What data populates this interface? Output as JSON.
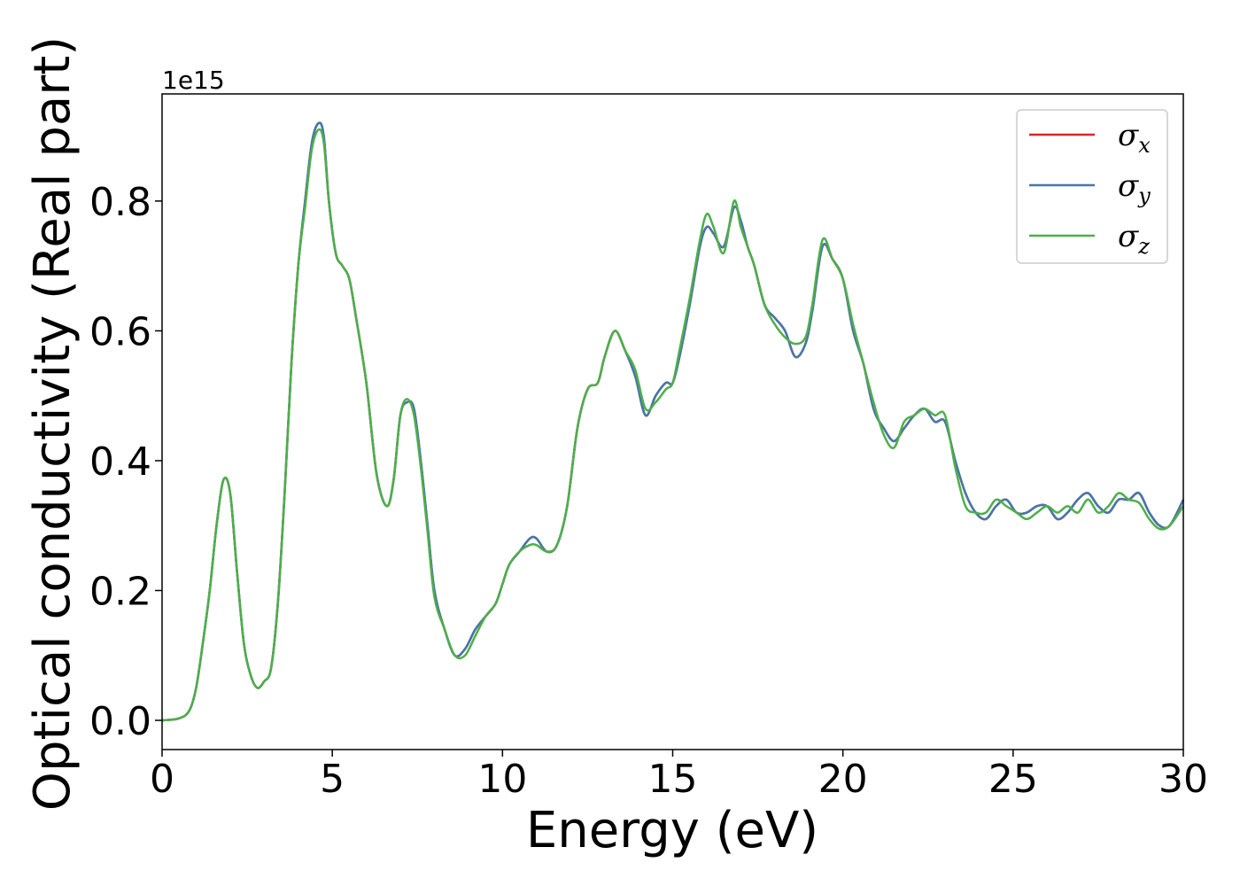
{
  "chart_data": {
    "type": "line",
    "xlabel": "Energy (eV)",
    "ylabel": "Optical conductivity (Real part)",
    "y_offset_label": "1e15",
    "xlim": [
      0,
      30
    ],
    "ylim": [
      -0.045,
      0.965
    ],
    "x_ticks": [
      0,
      5,
      10,
      15,
      20,
      25,
      30
    ],
    "x_tick_labels": [
      "0",
      "5",
      "10",
      "15",
      "20",
      "25",
      "30"
    ],
    "y_ticks": [
      0.0,
      0.2,
      0.4,
      0.6,
      0.8
    ],
    "y_tick_labels": [
      "0.0",
      "0.2",
      "0.4",
      "0.6",
      "0.8"
    ],
    "grid": false,
    "legend_position": "top-right",
    "series": [
      {
        "name": "σx",
        "legend_base": "σ",
        "legend_sub": "x",
        "color": "#d62728",
        "x": [
          0,
          0.5,
          0.8,
          1.0,
          1.2,
          1.4,
          1.6,
          1.8,
          2.0,
          2.2,
          2.4,
          2.6,
          2.8,
          3.0,
          3.2,
          3.4,
          3.6,
          3.8,
          4.0,
          4.2,
          4.4,
          4.6,
          4.75,
          4.9,
          5.1,
          5.3,
          5.5,
          5.7,
          6.0,
          6.3,
          6.6,
          6.8,
          7.0,
          7.2,
          7.4,
          7.6,
          7.8,
          8.0,
          8.3,
          8.6,
          8.9,
          9.2,
          9.5,
          9.8,
          10.0,
          10.2,
          10.5,
          10.8,
          11.0,
          11.3,
          11.6,
          11.9,
          12.2,
          12.5,
          12.8,
          13.0,
          13.3,
          13.6,
          13.9,
          14.2,
          14.5,
          14.8,
          15.0,
          15.2,
          15.5,
          15.8,
          16.0,
          16.2,
          16.5,
          16.8,
          17.0,
          17.2,
          17.4,
          17.7,
          18.0,
          18.3,
          18.6,
          18.9,
          19.1,
          19.4,
          19.7,
          20.0,
          20.3,
          20.6,
          20.9,
          21.2,
          21.5,
          21.8,
          22.1,
          22.4,
          22.7,
          23.0,
          23.3,
          23.6,
          23.9,
          24.2,
          24.5,
          24.8,
          25.1,
          25.4,
          25.7,
          26.0,
          26.3,
          26.6,
          26.9,
          27.2,
          27.5,
          27.8,
          28.1,
          28.4,
          28.7,
          29.0,
          29.3,
          29.6,
          30.0
        ],
        "y": [
          0,
          0.003,
          0.015,
          0.05,
          0.12,
          0.2,
          0.3,
          0.37,
          0.35,
          0.23,
          0.12,
          0.07,
          0.05,
          0.06,
          0.08,
          0.18,
          0.35,
          0.55,
          0.7,
          0.8,
          0.89,
          0.92,
          0.9,
          0.8,
          0.72,
          0.7,
          0.68,
          0.62,
          0.52,
          0.38,
          0.33,
          0.37,
          0.47,
          0.49,
          0.48,
          0.4,
          0.3,
          0.2,
          0.14,
          0.1,
          0.11,
          0.14,
          0.16,
          0.18,
          0.21,
          0.24,
          0.26,
          0.28,
          0.28,
          0.26,
          0.27,
          0.33,
          0.45,
          0.51,
          0.52,
          0.56,
          0.6,
          0.57,
          0.53,
          0.47,
          0.5,
          0.52,
          0.52,
          0.56,
          0.64,
          0.73,
          0.76,
          0.75,
          0.73,
          0.79,
          0.77,
          0.73,
          0.7,
          0.64,
          0.62,
          0.6,
          0.56,
          0.58,
          0.63,
          0.73,
          0.71,
          0.68,
          0.6,
          0.55,
          0.48,
          0.45,
          0.43,
          0.45,
          0.47,
          0.48,
          0.46,
          0.46,
          0.4,
          0.35,
          0.32,
          0.31,
          0.33,
          0.34,
          0.32,
          0.32,
          0.33,
          0.33,
          0.31,
          0.32,
          0.34,
          0.35,
          0.33,
          0.32,
          0.34,
          0.34,
          0.35,
          0.32,
          0.3,
          0.3,
          0.34
        ]
      },
      {
        "name": "σy",
        "legend_base": "σ",
        "legend_sub": "y",
        "color": "#4477aa",
        "x": [
          0,
          0.5,
          0.8,
          1.0,
          1.2,
          1.4,
          1.6,
          1.8,
          2.0,
          2.2,
          2.4,
          2.6,
          2.8,
          3.0,
          3.2,
          3.4,
          3.6,
          3.8,
          4.0,
          4.2,
          4.4,
          4.6,
          4.75,
          4.9,
          5.1,
          5.3,
          5.5,
          5.7,
          6.0,
          6.3,
          6.6,
          6.8,
          7.0,
          7.2,
          7.4,
          7.6,
          7.8,
          8.0,
          8.3,
          8.6,
          8.9,
          9.2,
          9.5,
          9.8,
          10.0,
          10.2,
          10.5,
          10.8,
          11.0,
          11.3,
          11.6,
          11.9,
          12.2,
          12.5,
          12.8,
          13.0,
          13.3,
          13.6,
          13.9,
          14.2,
          14.5,
          14.8,
          15.0,
          15.2,
          15.5,
          15.8,
          16.0,
          16.2,
          16.5,
          16.8,
          17.0,
          17.2,
          17.4,
          17.7,
          18.0,
          18.3,
          18.6,
          18.9,
          19.1,
          19.4,
          19.7,
          20.0,
          20.3,
          20.6,
          20.9,
          21.2,
          21.5,
          21.8,
          22.1,
          22.4,
          22.7,
          23.0,
          23.3,
          23.6,
          23.9,
          24.2,
          24.5,
          24.8,
          25.1,
          25.4,
          25.7,
          26.0,
          26.3,
          26.6,
          26.9,
          27.2,
          27.5,
          27.8,
          28.1,
          28.4,
          28.7,
          29.0,
          29.3,
          29.6,
          30.0
        ],
        "y": [
          0,
          0.003,
          0.015,
          0.05,
          0.12,
          0.2,
          0.3,
          0.37,
          0.35,
          0.23,
          0.12,
          0.07,
          0.05,
          0.06,
          0.08,
          0.18,
          0.35,
          0.55,
          0.7,
          0.8,
          0.89,
          0.92,
          0.9,
          0.8,
          0.72,
          0.7,
          0.68,
          0.62,
          0.52,
          0.38,
          0.33,
          0.37,
          0.47,
          0.49,
          0.48,
          0.4,
          0.3,
          0.2,
          0.14,
          0.1,
          0.11,
          0.14,
          0.16,
          0.18,
          0.21,
          0.24,
          0.26,
          0.28,
          0.28,
          0.26,
          0.27,
          0.33,
          0.45,
          0.51,
          0.52,
          0.56,
          0.6,
          0.57,
          0.53,
          0.47,
          0.5,
          0.52,
          0.52,
          0.56,
          0.64,
          0.73,
          0.76,
          0.75,
          0.73,
          0.79,
          0.77,
          0.73,
          0.7,
          0.64,
          0.62,
          0.6,
          0.56,
          0.58,
          0.63,
          0.73,
          0.71,
          0.68,
          0.6,
          0.55,
          0.48,
          0.45,
          0.43,
          0.45,
          0.47,
          0.48,
          0.46,
          0.46,
          0.4,
          0.35,
          0.32,
          0.31,
          0.33,
          0.34,
          0.32,
          0.32,
          0.33,
          0.33,
          0.31,
          0.32,
          0.34,
          0.35,
          0.33,
          0.32,
          0.34,
          0.34,
          0.35,
          0.32,
          0.3,
          0.3,
          0.34
        ]
      },
      {
        "name": "σz",
        "legend_base": "σ",
        "legend_sub": "z",
        "color": "#4daf4a",
        "x": [
          0,
          0.5,
          0.8,
          1.0,
          1.2,
          1.4,
          1.6,
          1.8,
          2.0,
          2.2,
          2.4,
          2.6,
          2.8,
          3.0,
          3.2,
          3.4,
          3.6,
          3.8,
          4.0,
          4.2,
          4.4,
          4.6,
          4.75,
          4.9,
          5.1,
          5.3,
          5.5,
          5.7,
          6.0,
          6.3,
          6.6,
          6.8,
          7.0,
          7.2,
          7.4,
          7.6,
          7.8,
          8.0,
          8.3,
          8.6,
          8.9,
          9.2,
          9.5,
          9.8,
          10.0,
          10.2,
          10.5,
          10.8,
          11.0,
          11.3,
          11.6,
          11.9,
          12.2,
          12.5,
          12.8,
          13.0,
          13.3,
          13.6,
          13.9,
          14.2,
          14.5,
          14.8,
          15.0,
          15.2,
          15.5,
          15.8,
          16.0,
          16.2,
          16.5,
          16.8,
          17.0,
          17.2,
          17.4,
          17.7,
          18.0,
          18.3,
          18.6,
          18.9,
          19.1,
          19.4,
          19.7,
          20.0,
          20.3,
          20.6,
          20.9,
          21.2,
          21.5,
          21.8,
          22.1,
          22.4,
          22.7,
          23.0,
          23.3,
          23.6,
          23.9,
          24.2,
          24.5,
          24.8,
          25.1,
          25.4,
          25.7,
          26.0,
          26.3,
          26.6,
          26.9,
          27.2,
          27.5,
          27.8,
          28.1,
          28.4,
          28.7,
          29.0,
          29.3,
          29.6,
          30.0
        ],
        "y": [
          0,
          0.003,
          0.015,
          0.05,
          0.12,
          0.2,
          0.3,
          0.37,
          0.35,
          0.23,
          0.12,
          0.07,
          0.05,
          0.06,
          0.08,
          0.18,
          0.35,
          0.55,
          0.7,
          0.79,
          0.88,
          0.91,
          0.89,
          0.8,
          0.72,
          0.7,
          0.68,
          0.62,
          0.52,
          0.38,
          0.33,
          0.37,
          0.47,
          0.495,
          0.47,
          0.39,
          0.29,
          0.19,
          0.14,
          0.1,
          0.1,
          0.13,
          0.16,
          0.18,
          0.21,
          0.24,
          0.26,
          0.27,
          0.27,
          0.26,
          0.27,
          0.33,
          0.45,
          0.51,
          0.52,
          0.56,
          0.6,
          0.57,
          0.54,
          0.48,
          0.49,
          0.51,
          0.52,
          0.57,
          0.65,
          0.74,
          0.78,
          0.76,
          0.72,
          0.8,
          0.76,
          0.73,
          0.7,
          0.64,
          0.61,
          0.59,
          0.58,
          0.59,
          0.64,
          0.74,
          0.71,
          0.68,
          0.61,
          0.55,
          0.49,
          0.44,
          0.42,
          0.46,
          0.47,
          0.48,
          0.47,
          0.47,
          0.39,
          0.33,
          0.32,
          0.32,
          0.34,
          0.33,
          0.32,
          0.31,
          0.32,
          0.33,
          0.32,
          0.33,
          0.32,
          0.34,
          0.32,
          0.33,
          0.35,
          0.34,
          0.335,
          0.31,
          0.295,
          0.3,
          0.33
        ]
      }
    ]
  }
}
